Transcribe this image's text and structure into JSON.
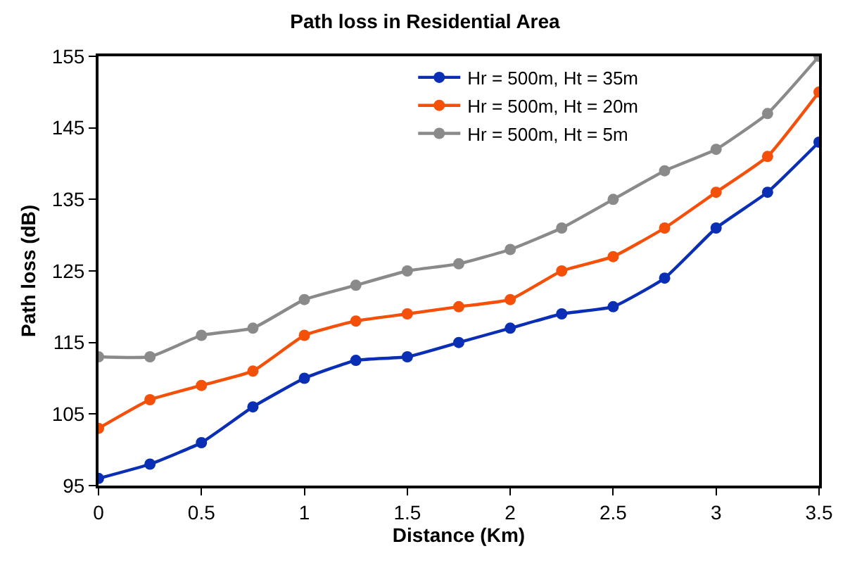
{
  "chart_data": {
    "type": "line",
    "title": "Path loss in Residential Area",
    "xlabel": "Distance (Km)",
    "ylabel": "Path loss (dB)",
    "x": [
      0,
      0.25,
      0.5,
      0.75,
      1,
      1.25,
      1.5,
      1.75,
      2,
      2.25,
      2.5,
      2.75,
      3,
      3.25,
      3.5
    ],
    "series": [
      {
        "name": "Hr = 500m, Ht = 35m",
        "color": "#0a2fb5",
        "values": [
          96,
          98,
          101,
          106,
          110,
          112.5,
          113,
          115,
          117,
          119,
          120,
          124,
          131,
          136,
          143
        ]
      },
      {
        "name": "Hr = 500m, Ht = 20m",
        "color": "#f4500a",
        "values": [
          103,
          107,
          109,
          111,
          116,
          118,
          119,
          120,
          121,
          125,
          127,
          131,
          136,
          141,
          150
        ]
      },
      {
        "name": "Hr = 500m, Ht = 5m",
        "color": "#8a8a8a",
        "values": [
          113,
          113,
          116,
          117,
          121,
          123,
          125,
          126,
          128,
          131,
          135,
          139,
          142,
          147,
          155
        ]
      }
    ],
    "xlim": [
      0,
      3.5
    ],
    "xticks": [
      0,
      0.5,
      1,
      1.5,
      2,
      2.5,
      3,
      3.5
    ],
    "ylim": [
      95,
      155
    ],
    "yticks": [
      95,
      105,
      115,
      125,
      135,
      145,
      155
    ],
    "legend": "top right",
    "marker": "circle",
    "line_style": "solid"
  }
}
